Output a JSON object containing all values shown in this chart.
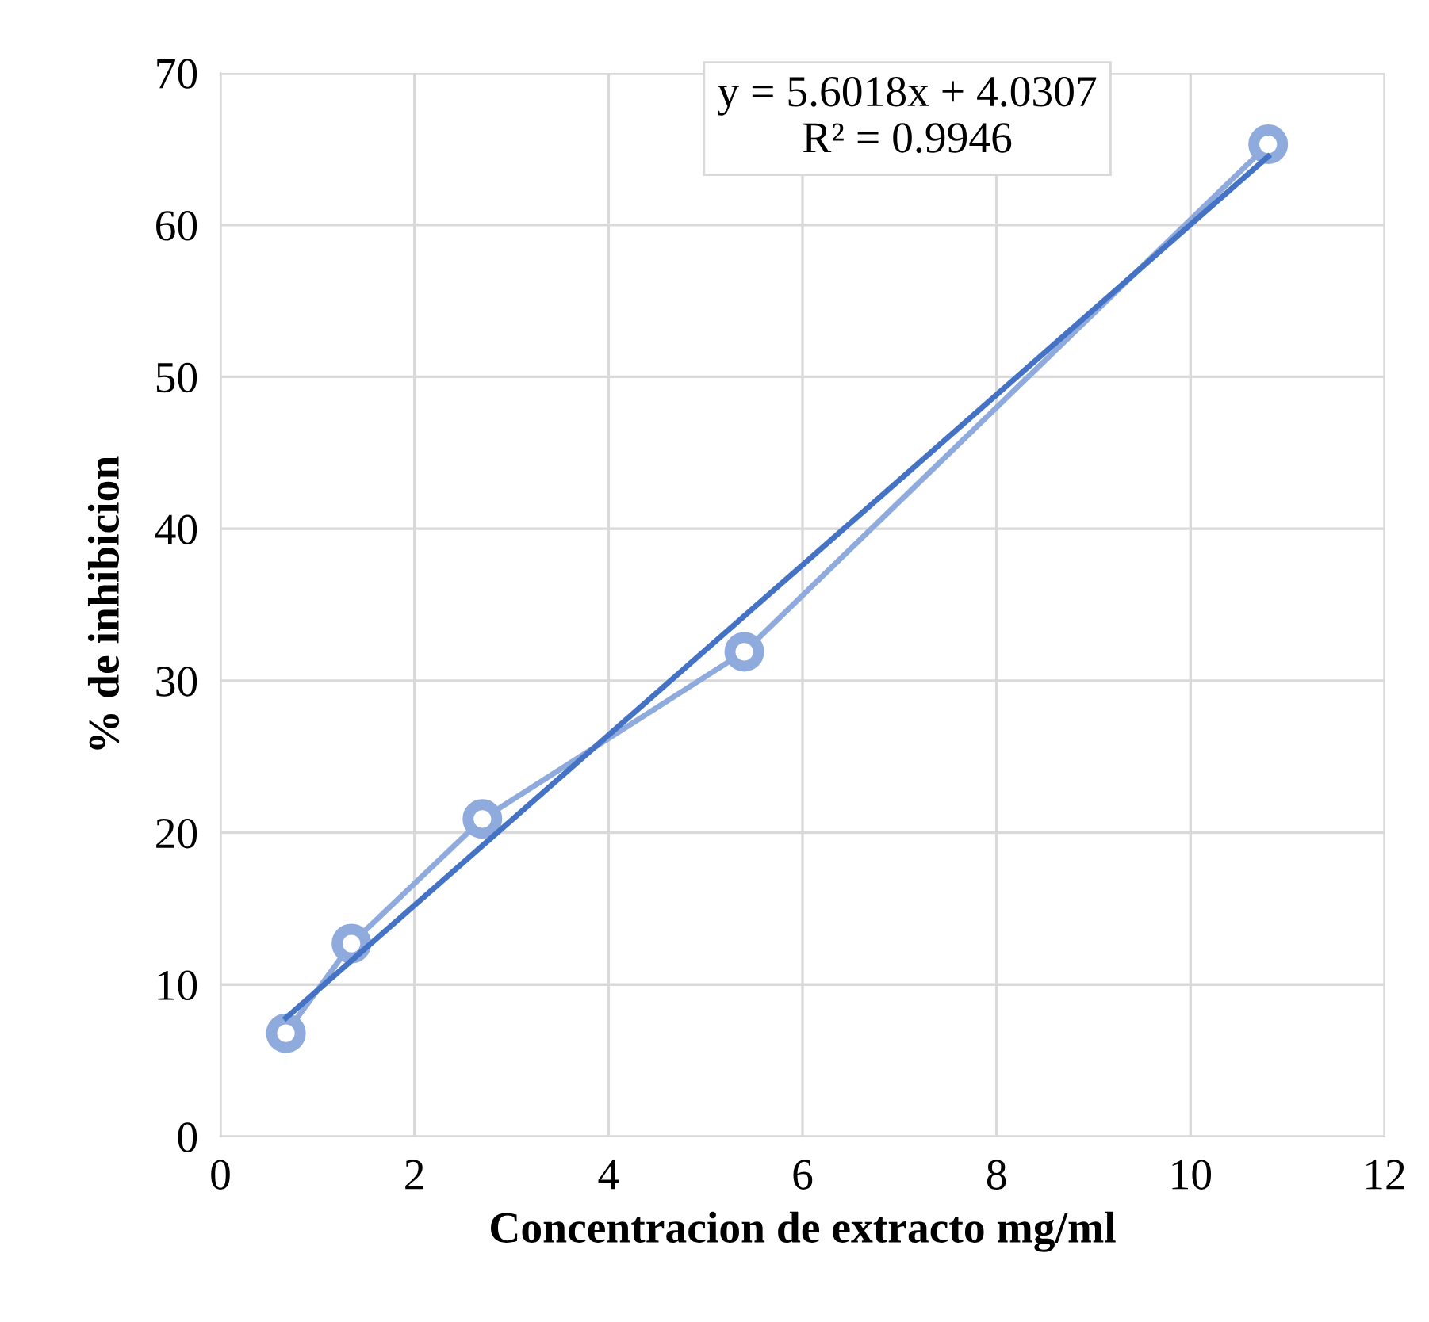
{
  "chart_data": {
    "type": "line",
    "xlabel": "Concentracion de extracto mg/ml",
    "ylabel": "% de inhibicion",
    "xlim": [
      0,
      12
    ],
    "xticks": [
      0,
      2,
      4,
      6,
      8,
      10,
      12
    ],
    "ylim": [
      0,
      70
    ],
    "yticks": [
      0,
      10,
      20,
      30,
      40,
      50,
      60,
      70
    ],
    "grid": true,
    "legend": false,
    "series": [
      {
        "x": [
          0.675,
          1.35,
          2.7,
          5.4,
          10.8
        ],
        "values": [
          6.8,
          12.7,
          20.9,
          31.9,
          65.3
        ],
        "color": "#8faadc",
        "marker": "circle"
      },
      {
        "x": [
          0.675,
          10.8
        ],
        "values": [
          7.8,
          64.5
        ],
        "color": "#4472c4",
        "marker": "none"
      }
    ],
    "annotations": [
      "y = 5.6018x + 4.0307\nR² = 0.9946"
    ]
  }
}
